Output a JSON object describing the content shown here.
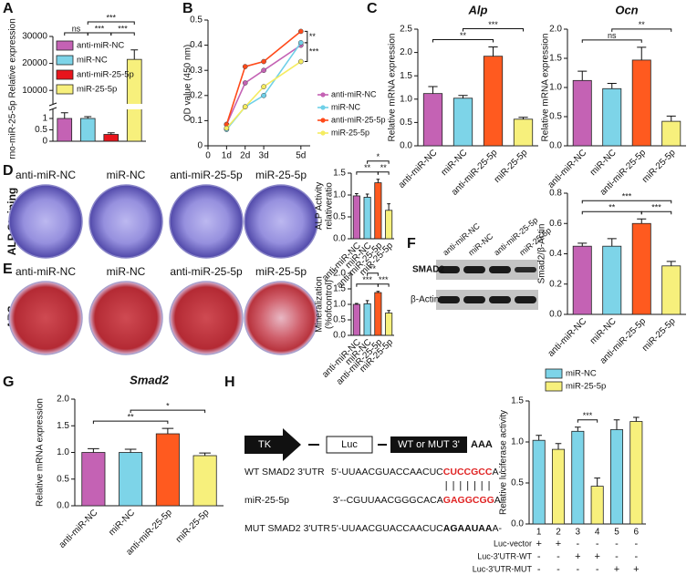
{
  "panel_labels": [
    "A",
    "B",
    "C",
    "D",
    "E",
    "F",
    "G",
    "H"
  ],
  "plates": {
    "columns": [
      "anti-miR-NC",
      "miR-NC",
      "anti-miR-25-5p",
      "miR-25-5p"
    ],
    "rows": [
      "ALP Staining",
      "ARS"
    ]
  },
  "western_blot": {
    "lanes": [
      "anti-miR-NC",
      "miR-NC",
      "anti-miR-25-5p",
      "miR-25-5p"
    ],
    "proteins": [
      "SMAD2",
      "β-Actin"
    ]
  },
  "construct": {
    "promoter": "TK",
    "reporter": "Luc",
    "utr": "WT or MUT 3'",
    "tail": "AAA"
  },
  "sequences": [
    {
      "name": "WT SMAD2 3'UTR",
      "parts": [
        {
          "text": "5'-UUAACGUACCAACUC"
        },
        {
          "text": "CUCCGCC",
          "color": "#e02424"
        },
        {
          "text": "A-"
        }
      ]
    },
    {
      "name": "miR-25-5p",
      "parts": [
        {
          "text": "3'--CGUUAACGGGCACA"
        },
        {
          "text": "GAGGCGG",
          "color": "#e02424"
        },
        {
          "text": "A-"
        }
      ]
    },
    {
      "name": "MUT SMAD2 3'UTR",
      "parts": [
        {
          "text": "5'-UUAACGUACCAACUC"
        },
        {
          "text": "AGAAUAA",
          "bold": true
        },
        {
          "text": "A-"
        }
      ]
    }
  ],
  "pairing": "|||||||",
  "luciferase_table": {
    "rows": [
      {
        "label": "Luc-vector",
        "signs": [
          "+",
          "+",
          "-",
          "-",
          "-",
          "-"
        ]
      },
      {
        "label": "Luc-3'UTR-WT",
        "signs": [
          "-",
          "-",
          "+",
          "+",
          "-",
          "-"
        ]
      },
      {
        "label": "Luc-3'UTR-MUT",
        "signs": [
          "-",
          "-",
          "-",
          "-",
          "+",
          "+"
        ]
      }
    ]
  },
  "chart_data": [
    {
      "type": "bar",
      "ylabel": "rno-miR-25-5p Relative expression",
      "categories": [
        "anti-miR-NC",
        "miR-NC",
        "anti-miR-25-5p",
        "miR-25-5p"
      ],
      "colors": [
        "#c462b4",
        "#7dd4e8",
        "#e8141b",
        "#f7f07c"
      ],
      "values": [
        1.0,
        1.0,
        0.3,
        21500
      ],
      "errors": [
        0.25,
        0.08,
        0.07,
        3500
      ],
      "ylim": [
        0,
        30000
      ],
      "axis_break": [
        1.4,
        5000
      ],
      "yticks": [
        0,
        0.5,
        1,
        10000,
        20000,
        30000
      ],
      "legend": true,
      "annotations": [
        {
          "label": "ns",
          "from": 0,
          "to": 1
        },
        {
          "label": "***",
          "from": 1,
          "to": 2
        },
        {
          "label": "***",
          "from": 2,
          "to": 3
        },
        {
          "label": "***",
          "from": 1,
          "to": 3
        }
      ]
    },
    {
      "type": "line",
      "ylabel": "OD value (450 nm)",
      "x": [
        1,
        2,
        3,
        5
      ],
      "xlim": [
        0,
        5.5
      ],
      "xticks": [
        0,
        {
          "value": 1,
          "label": "1d"
        },
        {
          "value": 2,
          "label": "2d"
        },
        {
          "value": 3,
          "label": "3d"
        },
        {
          "value": 5,
          "label": "5d"
        }
      ],
      "ylim": [
        0,
        0.5
      ],
      "yticks": [
        0,
        0.1,
        0.2,
        0.3,
        0.4,
        0.5
      ],
      "series": [
        {
          "name": "anti-miR-NC",
          "color": "#c462b4",
          "values": [
            0.085,
            0.25,
            0.3,
            0.4
          ]
        },
        {
          "name": "miR-NC",
          "color": "#6fd0e8",
          "values": [
            0.065,
            0.155,
            0.2,
            0.41
          ]
        },
        {
          "name": "anti-miR-25-5p",
          "color": "#ff4a1a",
          "values": [
            0.085,
            0.315,
            0.335,
            0.455
          ]
        },
        {
          "name": "miR-25-5p",
          "color": "#f5ec60",
          "values": [
            0.07,
            0.155,
            0.235,
            0.335
          ]
        }
      ],
      "annotations": [
        {
          "label": "**",
          "series": [
            2,
            1
          ]
        },
        {
          "label": "***",
          "series": [
            1,
            3
          ]
        }
      ]
    },
    {
      "type": "bar",
      "title": "Alp",
      "ylabel": "Relative mRNA expression",
      "categories": [
        "anti-miR-NC",
        "miR-NC",
        "anti-miR-25-5p",
        "miR-25-5p"
      ],
      "colors": [
        "#c462b4",
        "#7dd4e8",
        "#ff5a1f",
        "#f7f07c"
      ],
      "values": [
        1.12,
        1.02,
        1.92,
        0.57
      ],
      "errors": [
        0.15,
        0.06,
        0.2,
        0.04
      ],
      "ylim": [
        0,
        2.5
      ],
      "yticks": [
        {
          "value": 0,
          "label": "0.0"
        },
        0.5,
        {
          "value": 1,
          "label": "1.0"
        },
        1.5,
        {
          "value": 2,
          "label": "2.0"
        },
        2.5
      ],
      "annotations": [
        {
          "label": "**",
          "from": 0,
          "to": 2
        },
        {
          "label": "***",
          "from": 1,
          "to": 3
        }
      ]
    },
    {
      "type": "bar",
      "title": "Ocn",
      "ylabel": "Relative mRNA expression",
      "categories": [
        "anti-miR-NC",
        "miR-NC",
        "anti-miR-25-5p",
        "miR-25-5p"
      ],
      "colors": [
        "#c462b4",
        "#7dd4e8",
        "#ff5a1f",
        "#f7f07c"
      ],
      "values": [
        1.12,
        0.98,
        1.47,
        0.42
      ],
      "errors": [
        0.16,
        0.09,
        0.22,
        0.09
      ],
      "ylim": [
        0,
        2
      ],
      "yticks": [
        {
          "value": 0,
          "label": "0.0"
        },
        0.5,
        {
          "value": 1,
          "label": "1.0"
        },
        1.5,
        {
          "value": 2,
          "label": "2.0"
        }
      ],
      "annotations": [
        {
          "label": "ns",
          "from": 0,
          "to": 2
        },
        {
          "label": "**",
          "from": 1,
          "to": 3
        }
      ]
    },
    {
      "type": "bar",
      "ylabel": [
        "ALP Activity",
        "relativeratio"
      ],
      "categories": [
        "anti-miR-NC",
        "miR-NC",
        "anti-miR-25-5p",
        "miR-25-5p"
      ],
      "colors": [
        "#c462b4",
        "#7dd4e8",
        "#ff5a1f",
        "#f7f07c"
      ],
      "values": [
        0.98,
        0.95,
        1.28,
        0.65
      ],
      "errors": [
        0.05,
        0.07,
        0.08,
        0.15
      ],
      "ylim": [
        0,
        1.5
      ],
      "yticks": [
        {
          "value": 0,
          "label": "0.0"
        },
        0.5,
        {
          "value": 1,
          "label": "1.0"
        },
        1.5
      ],
      "annotations": [
        {
          "label": "**",
          "from": 0,
          "to": 2
        },
        {
          "label": "**",
          "from": 2,
          "to": 3
        },
        {
          "label": "*",
          "from": 1,
          "to": 3
        }
      ]
    },
    {
      "type": "bar",
      "ylabel": [
        "Mineralization",
        "(%ofcontrol)"
      ],
      "categories": [
        "anti-miR-NC",
        "miR-NC",
        "anti-miR-25-5p",
        "miR-25-5p"
      ],
      "colors": [
        "#c462b4",
        "#7dd4e8",
        "#ff5a1f",
        "#f7f07c"
      ],
      "values": [
        1.0,
        1.02,
        1.38,
        0.72
      ],
      "errors": [
        0.03,
        0.1,
        0.04,
        0.08
      ],
      "ylim": [
        0,
        2
      ],
      "yticks": [
        {
          "value": 0,
          "label": "0.0"
        },
        0.5,
        {
          "value": 1,
          "label": "1.0"
        },
        1.5,
        {
          "value": 2,
          "label": "2.0"
        }
      ],
      "annotations": [
        {
          "label": "***",
          "from": 0,
          "to": 2
        },
        {
          "label": "***",
          "from": 2,
          "to": 3
        },
        {
          "label": "**",
          "from": 1,
          "to": 2
        }
      ]
    },
    {
      "type": "bar",
      "ylabel": "Smad2/β-Actin",
      "categories": [
        "anti-miR-NC",
        "miR-NC",
        "anti-miR-25-5p",
        "miR-25-5p"
      ],
      "colors": [
        "#c462b4",
        "#7dd4e8",
        "#ff5a1f",
        "#f7f07c"
      ],
      "values": [
        0.45,
        0.45,
        0.6,
        0.32
      ],
      "errors": [
        0.02,
        0.05,
        0.03,
        0.03
      ],
      "ylim": [
        0,
        0.8
      ],
      "yticks": [
        {
          "value": 0,
          "label": "0.0"
        },
        0.2,
        0.4,
        0.6,
        0.8
      ],
      "annotations": [
        {
          "label": "**",
          "from": 0,
          "to": 2
        },
        {
          "label": "***",
          "from": 2,
          "to": 3
        },
        {
          "label": "***",
          "from": 0,
          "to": 3
        }
      ]
    },
    {
      "type": "bar",
      "title": "Smad2",
      "ylabel": "Relative mRNA expression",
      "categories": [
        "anti-miR-NC",
        "miR-NC",
        "anti-miR-25-5p",
        "miR-25-5p"
      ],
      "colors": [
        "#c462b4",
        "#7dd4e8",
        "#ff5a1f",
        "#f7f07c"
      ],
      "values": [
        1.0,
        1.0,
        1.35,
        0.94
      ],
      "errors": [
        0.07,
        0.06,
        0.1,
        0.05
      ],
      "ylim": [
        0,
        2
      ],
      "yticks": [
        {
          "value": 0,
          "label": "0.0"
        },
        0.5,
        {
          "value": 1,
          "label": "1.0"
        },
        1.5,
        {
          "value": 2,
          "label": "2.0"
        }
      ],
      "annotations": [
        {
          "label": "**",
          "from": 0,
          "to": 2
        },
        {
          "label": "*",
          "from": 1,
          "to": 3
        }
      ]
    },
    {
      "type": "bar",
      "ylabel": "Relative luciferase activity",
      "categories": [
        "1",
        "2",
        "3",
        "4",
        "5",
        "6"
      ],
      "series": [
        {
          "name": "miR-NC",
          "color": "#7dd4e8",
          "values": [
            1.02,
            null,
            1.13,
            null,
            1.15,
            null
          ],
          "errors": [
            0.06,
            null,
            0.05,
            null,
            0.12,
            null
          ]
        },
        {
          "name": "miR-25-5p",
          "color": "#f7f07c",
          "values": [
            null,
            0.91,
            null,
            0.46,
            null,
            1.25
          ],
          "errors": [
            null,
            0.07,
            null,
            0.1,
            null,
            0.05
          ]
        }
      ],
      "ylim": [
        0,
        1.5
      ],
      "yticks": [
        {
          "value": 0,
          "label": "0.0"
        },
        0.5,
        {
          "value": 1,
          "label": "1.0"
        },
        1.5
      ],
      "legend": true,
      "annotations": [
        {
          "label": "***",
          "from": 2,
          "to": 3
        }
      ]
    }
  ]
}
